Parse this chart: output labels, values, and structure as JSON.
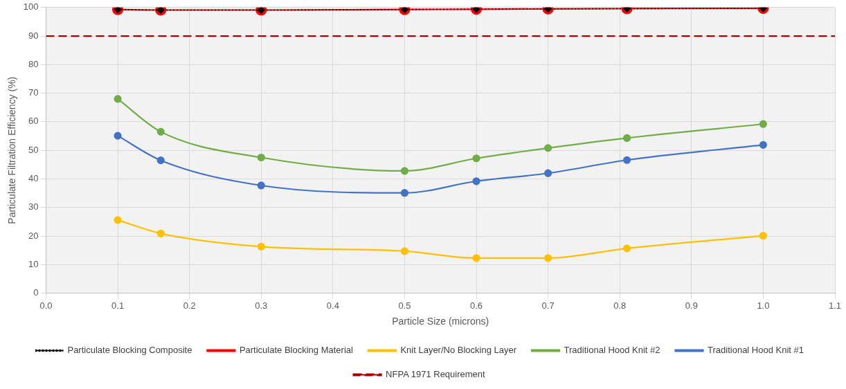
{
  "chart_data": {
    "type": "line",
    "xlabel": "Particle Size (microns)",
    "ylabel": "Particulate Filtration Efficiency (%)",
    "x": [
      0.1,
      0.16,
      0.3,
      0.5,
      0.6,
      0.7,
      0.81,
      1.0
    ],
    "series": [
      {
        "name": "Traditional Hood Knit #1",
        "color": "#4472c4",
        "marker": "circle",
        "line_style": "solid",
        "values": [
          55.1,
          46.5,
          37.7,
          35.1,
          39.2,
          42.0,
          46.6,
          51.9
        ]
      },
      {
        "name": "Traditional Hood Knit #2",
        "color": "#70ad47",
        "marker": "circle",
        "line_style": "solid",
        "values": [
          68.0,
          56.5,
          47.5,
          42.8,
          47.2,
          50.8,
          54.3,
          59.2
        ]
      },
      {
        "name": "Knit Layer/No Blocking Layer",
        "color": "#ffc000",
        "marker": "circle",
        "line_style": "solid",
        "values": [
          25.6,
          20.9,
          16.3,
          14.7,
          12.3,
          12.3,
          15.7,
          20.1
        ]
      },
      {
        "name": "Particulate Blocking Material",
        "color": "#ff0000",
        "marker": "circle",
        "line_style": "solid",
        "values": [
          99.3,
          99.1,
          99.1,
          99.3,
          99.4,
          99.5,
          99.6,
          99.7
        ]
      },
      {
        "name": "Particulate Blocking Composite",
        "color": "#000000",
        "marker": "diamond",
        "line_style": "dotted",
        "values": [
          99.3,
          99.1,
          99.1,
          99.3,
          99.4,
          99.5,
          99.6,
          99.7
        ]
      }
    ],
    "ref_lines": [
      {
        "axis": "y",
        "value": 90,
        "label": "NFPA 1971 Requirement",
        "color": "#a00000",
        "line_style": "dashed"
      }
    ],
    "xlim": [
      0.0,
      1.1
    ],
    "xticks": [
      {
        "value": 0,
        "label": "0.0"
      },
      0.1,
      0.2,
      0.3,
      0.4,
      0.5,
      0.6,
      0.7,
      0.8,
      0.9,
      {
        "value": 1,
        "label": "1.0"
      },
      1.1
    ],
    "ylim": [
      0,
      100
    ],
    "yticks": [
      0,
      10,
      20,
      30,
      40,
      50,
      60,
      70,
      80,
      90,
      100
    ],
    "grid": true,
    "legend": "bottom"
  }
}
